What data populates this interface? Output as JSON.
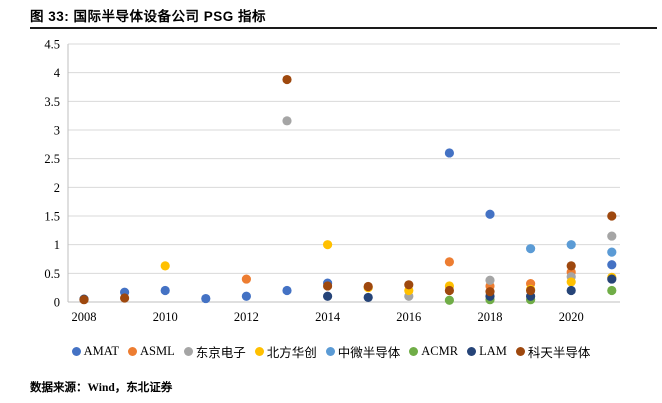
{
  "header": {
    "title": "图 33: 国际半导体设备公司 PSG 指标"
  },
  "footer": {
    "source": "数据来源：Wind，东北证券"
  },
  "chart_data": {
    "type": "scatter",
    "title": "国际半导体设备公司 PSG 指标",
    "xlabel": "",
    "ylabel": "",
    "xlim": [
      2007.6,
      2021.6
    ],
    "ylim": [
      0,
      4.5
    ],
    "grid": true,
    "gridline_color": "#D9D9D9",
    "axis_line_color": "#BFBFBF",
    "legend_position": "bottom",
    "x_ticks": [
      "2008",
      "2010",
      "2012",
      "2014",
      "2016",
      "2018",
      "2020"
    ],
    "y_ticks": [
      "0",
      "0.5",
      "1",
      "1.5",
      "2",
      "2.5",
      "3",
      "3.5",
      "4",
      "4.5"
    ],
    "series": [
      {
        "key": "amat",
        "name": "AMAT",
        "color": "#4472C4",
        "points": [
          [
            2009,
            0.17
          ],
          [
            2010,
            0.2
          ],
          [
            2011,
            0.06
          ],
          [
            2012,
            0.1
          ],
          [
            2013,
            0.2
          ],
          [
            2014,
            0.33
          ],
          [
            2017,
            2.6
          ],
          [
            2018,
            1.53
          ],
          [
            2021,
            0.65
          ]
        ]
      },
      {
        "key": "asml",
        "name": "ASML",
        "color": "#ED7D31",
        "points": [
          [
            2012,
            0.4
          ],
          [
            2017,
            0.7
          ],
          [
            2018,
            0.28
          ],
          [
            2019,
            0.32
          ],
          [
            2020,
            0.52
          ]
        ]
      },
      {
        "key": "tokyo-electron",
        "name": "东京电子",
        "color": "#A5A5A5",
        "points": [
          [
            2013,
            3.16
          ],
          [
            2016,
            0.1
          ],
          [
            2018,
            0.38
          ],
          [
            2020,
            0.44
          ],
          [
            2021,
            1.15
          ]
        ]
      },
      {
        "key": "naura",
        "name": "北方华创",
        "color": "#FFC000",
        "points": [
          [
            2010,
            0.63
          ],
          [
            2014,
            1.0
          ],
          [
            2015,
            0.25
          ],
          [
            2016,
            0.2
          ],
          [
            2017,
            0.28
          ],
          [
            2019,
            0.22
          ],
          [
            2020,
            0.35
          ],
          [
            2021,
            0.43
          ]
        ]
      },
      {
        "key": "amec",
        "name": "中微半导体",
        "color": "#5B9BD5",
        "points": [
          [
            2019,
            0.93
          ],
          [
            2020,
            1.0
          ],
          [
            2021,
            0.87
          ]
        ]
      },
      {
        "key": "acmr",
        "name": "ACMR",
        "color": "#70AD47",
        "points": [
          [
            2017,
            0.03
          ],
          [
            2018,
            0.04
          ],
          [
            2019,
            0.04
          ],
          [
            2021,
            0.2
          ]
        ]
      },
      {
        "key": "lam",
        "name": "LAM",
        "color": "#264478",
        "points": [
          [
            2008,
            0.05
          ],
          [
            2014,
            0.1
          ],
          [
            2015,
            0.08
          ],
          [
            2018,
            0.1
          ],
          [
            2019,
            0.1
          ],
          [
            2020,
            0.2
          ],
          [
            2021,
            0.4
          ]
        ]
      },
      {
        "key": "kla",
        "name": "科天半导体",
        "color": "#9E480E",
        "points": [
          [
            2008,
            0.04
          ],
          [
            2009,
            0.07
          ],
          [
            2013,
            3.88
          ],
          [
            2014,
            0.28
          ],
          [
            2015,
            0.27
          ],
          [
            2016,
            0.3
          ],
          [
            2017,
            0.2
          ],
          [
            2018,
            0.18
          ],
          [
            2019,
            0.2
          ],
          [
            2020,
            0.63
          ],
          [
            2021,
            1.5
          ]
        ]
      }
    ]
  }
}
